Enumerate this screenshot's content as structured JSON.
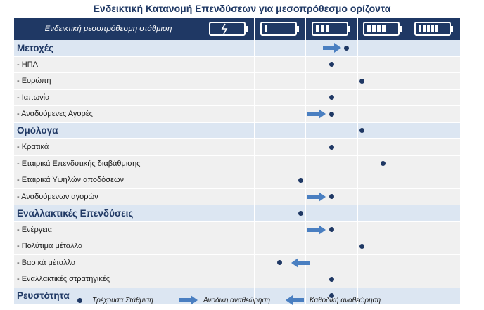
{
  "title": "Ενδεικτική Κατανομή Επενδύσεων για μεσοπρόθεσμο ορίζοντα",
  "header": {
    "label": "Ενδεικτική μεσοπρόθεσμη στάθμιση",
    "levels": [
      "battery-charging-icon",
      "battery-low-icon",
      "battery-half-icon",
      "battery-high-icon",
      "battery-full-icon"
    ]
  },
  "colors": {
    "navy": "#1f3864",
    "arrow": "#4a7fc1",
    "category_bg": "#dce6f2",
    "sub_bg": "#f0f0f0"
  },
  "rows": [
    {
      "label": "Μετοχές",
      "type": "category",
      "weight": 3.3,
      "arrow": "up"
    },
    {
      "label": "- ΗΠΑ",
      "type": "sub",
      "weight": 3.0,
      "arrow": ""
    },
    {
      "label": "- Ευρώπη",
      "type": "sub",
      "weight": 3.6,
      "arrow": ""
    },
    {
      "label": "- Ιαπωνία",
      "type": "sub",
      "weight": 3.0,
      "arrow": ""
    },
    {
      "label": "- Αναδυόμενες Αγορές",
      "type": "sub",
      "weight": 3.0,
      "arrow": "up"
    },
    {
      "label": "Ομόλογα",
      "type": "category",
      "weight": 3.6,
      "arrow": ""
    },
    {
      "label": "- Κρατικά",
      "type": "sub",
      "weight": 3.0,
      "arrow": ""
    },
    {
      "label": "- Εταιρικά Επενδυτικής διαβάθμισης",
      "type": "sub",
      "weight": 4.0,
      "arrow": ""
    },
    {
      "label": "- Εταιρικά Υψηλών αποδόσεων",
      "type": "sub",
      "weight": 2.4,
      "arrow": ""
    },
    {
      "label": "- Αναδυόμενων αγορών",
      "type": "sub",
      "weight": 3.0,
      "arrow": "up"
    },
    {
      "label": "Εναλλακτικές Επενδύσεις",
      "type": "category",
      "weight": 2.4,
      "arrow": ""
    },
    {
      "label": "- Ενέργεια",
      "type": "sub",
      "weight": 3.0,
      "arrow": "up"
    },
    {
      "label": "- Πολύτιμα μέταλλα",
      "type": "sub",
      "weight": 3.6,
      "arrow": ""
    },
    {
      "label": "- Βασικά μέταλλα",
      "type": "sub",
      "weight": 2.0,
      "arrow": "down"
    },
    {
      "label": "- Εναλλακτικές στρατηγικές",
      "type": "sub",
      "weight": 3.0,
      "arrow": ""
    },
    {
      "label": "Ρευστότητα",
      "type": "category",
      "weight": 3.0,
      "arrow": ""
    }
  ],
  "legend": {
    "current": "Τρέχουσα Στάθμιση",
    "up": "Ανοδική αναθεώρηση",
    "down": "Καθοδική αναθεώρηση"
  }
}
